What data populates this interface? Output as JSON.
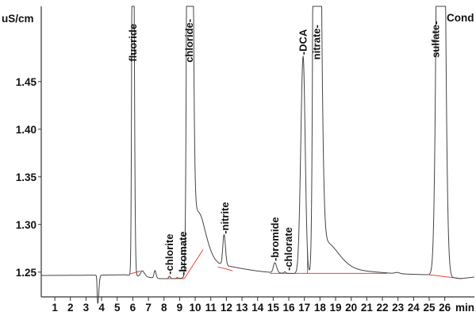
{
  "chart_data": {
    "type": "line",
    "title": "",
    "ylabel": "uS/cm",
    "xlabel": "min",
    "trace_name": "Cond",
    "xlim": [
      0.13,
      27.9
    ],
    "ylim": [
      1.224,
      1.529
    ],
    "x_ticks": [
      1,
      2,
      3,
      4,
      5,
      6,
      7,
      8,
      9,
      10,
      11,
      12,
      13,
      14,
      15,
      16,
      17,
      18,
      19,
      20,
      21,
      22,
      23,
      24,
      25,
      26
    ],
    "y_ticks": [
      "1.25",
      "1.30",
      "1.35",
      "1.40",
      "1.45"
    ],
    "grid": false,
    "colors": {
      "trace": "#444444",
      "integration_baseline": "#e8453c",
      "axis": "#333333"
    },
    "baseline_points": [
      [
        0,
        1.2465
      ],
      [
        3.4,
        1.2468
      ],
      [
        5.5,
        1.2472
      ],
      [
        6.8,
        1.245
      ],
      [
        7.7,
        1.2432
      ],
      [
        9.3,
        1.2432
      ],
      [
        12,
        1.2475
      ],
      [
        14.5,
        1.2482
      ],
      [
        22,
        1.2482
      ],
      [
        25,
        1.2472
      ],
      [
        27,
        1.2432
      ],
      [
        28,
        1.245
      ]
    ],
    "peaks": [
      {
        "name": "dip",
        "t": 3.75,
        "h": -0.03,
        "sl": 0.035,
        "sr": 0.07
      },
      {
        "name": "fluoride",
        "t": 6.0,
        "h": 0.6,
        "sl": 0.055,
        "sr": 0.075
      },
      {
        "name": "unknown-6.6",
        "t": 6.6,
        "h": 0.006,
        "sl": 0.1,
        "sr": 0.15
      },
      {
        "name": "unknown-7.4",
        "t": 7.42,
        "h": 0.008,
        "sl": 0.06,
        "sr": 0.07
      },
      {
        "name": "chlorite",
        "t": 8.35,
        "h": 0.0025,
        "sl": 0.05,
        "sr": 0.06
      },
      {
        "name": "bromate",
        "t": 8.85,
        "h": 0.001,
        "sl": 0.05,
        "sr": 0.05
      },
      {
        "name": "chloride",
        "t": 9.62,
        "h": 1.5,
        "sl": 0.1,
        "sr": 0.14
      },
      {
        "name": "chloride-tail",
        "t": 9.9,
        "h": 0.06,
        "sl": 0.2,
        "sr": 0.55
      },
      {
        "name": "hump",
        "t": 10.5,
        "h": 0.012,
        "sl": 0.25,
        "sr": 0.5
      },
      {
        "name": "chloride-long-tail",
        "t": 10.4,
        "h": 0.012,
        "sl": 0.5,
        "sr": 2.2
      },
      {
        "name": "nitrite",
        "t": 11.85,
        "h": 0.032,
        "sl": 0.08,
        "sr": 0.09
      },
      {
        "name": "bromide",
        "t": 15.1,
        "h": 0.0105,
        "sl": 0.09,
        "sr": 0.12
      },
      {
        "name": "chlorate",
        "t": 15.75,
        "h": 0.0015,
        "sl": 0.06,
        "sr": 0.06
      },
      {
        "name": "DCA",
        "t": 16.92,
        "h": 0.228,
        "sl": 0.15,
        "sr": 0.13
      },
      {
        "name": "nitrate",
        "t": 17.72,
        "h": 1.2,
        "sl": 0.11,
        "sr": 0.22
      },
      {
        "name": "nitrate-tail",
        "t": 18.2,
        "h": 0.03,
        "sl": 0.3,
        "sr": 0.9
      },
      {
        "name": "nitrate-long-tail",
        "t": 18.8,
        "h": 0.005,
        "sl": 0.5,
        "sr": 2.0
      },
      {
        "name": "unknown-23",
        "t": 22.95,
        "h": 0.0012,
        "sl": 0.15,
        "sr": 0.15
      },
      {
        "name": "sulfate",
        "t": 25.74,
        "h": 1.0,
        "sl": 0.19,
        "sr": 0.2
      }
    ],
    "integration_lines": [
      [
        [
          5.85,
          1.2482
        ],
        [
          6.5,
          1.2513
        ]
      ],
      [
        [
          8.2,
          1.2432
        ],
        [
          9.3,
          1.2432
        ]
      ],
      [
        [
          9.3,
          1.2432
        ],
        [
          10.5,
          1.2735
        ]
      ],
      [
        [
          11.45,
          1.2555
        ],
        [
          12.4,
          1.2515
        ]
      ],
      [
        [
          14.8,
          1.2487
        ],
        [
          21.2,
          1.2487
        ]
      ],
      [
        [
          17.2,
          1.2487
        ],
        [
          17.2,
          1.2735
        ]
      ],
      [
        [
          21.2,
          1.2487
        ],
        [
          22.3,
          1.2487
        ]
      ],
      [
        [
          25.0,
          1.2472
        ],
        [
          27.1,
          1.2432
        ]
      ]
    ],
    "peak_labels": [
      {
        "text": "fluoride",
        "t": 6.0,
        "v": 1.471,
        "dash": ""
      },
      {
        "text": "chloride-",
        "t": 9.62,
        "v": 1.47,
        "dash": ""
      },
      {
        "text": "-chlorite",
        "t": 8.35,
        "v": 1.2475,
        "dash": ""
      },
      {
        "text": "-bromate",
        "t": 8.85,
        "v": 1.2465,
        "dash": ""
      },
      {
        "text": "-nitrite",
        "t": 11.9,
        "v": 1.29,
        "dash": ""
      },
      {
        "text": "-bromide",
        "t": 15.1,
        "v": 1.2615,
        "dash": ""
      },
      {
        "text": "-chlorate",
        "t": 15.75,
        "v": 1.2515,
        "dash": ""
      },
      {
        "text": "-DCA",
        "t": 16.92,
        "v": 1.478,
        "dash": ""
      },
      {
        "text": "nitrate-",
        "t": 17.72,
        "v": 1.473,
        "dash": ""
      },
      {
        "text": "sulfate-",
        "t": 25.4,
        "v": 1.475,
        "dash": ""
      }
    ]
  }
}
